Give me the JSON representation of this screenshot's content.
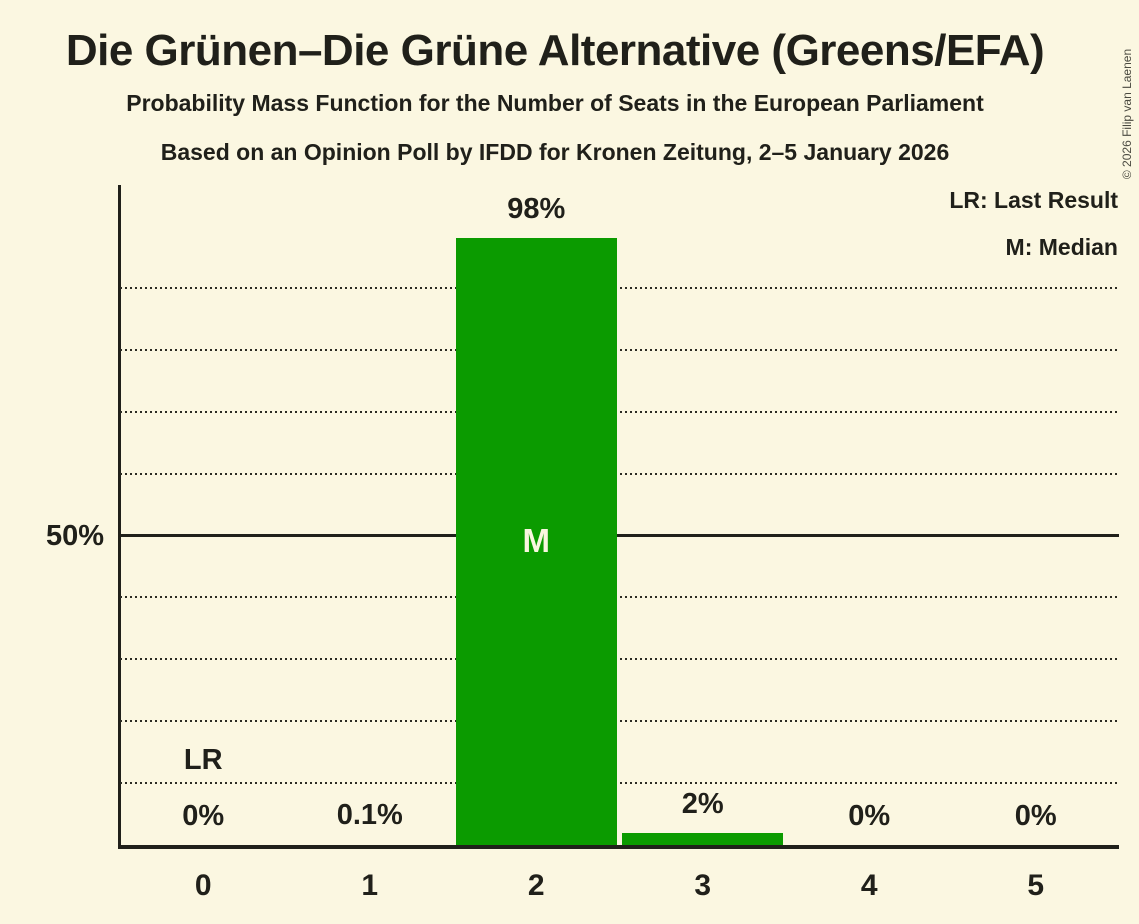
{
  "header": {
    "title": "Die Grünen–Die Grüne Alternative (Greens/EFA)",
    "subtitle": "Probability Mass Function for the Number of Seats in the European Parliament",
    "source_line": "Based on an Opinion Poll by IFDD for Kronen Zeitung, 2–5 January 2026"
  },
  "copyright": "© 2026 Filip van Laenen",
  "legend": {
    "lr": "LR: Last Result",
    "m": "M: Median"
  },
  "chart_data": {
    "type": "bar",
    "title": "Probability Mass Function for the Number of Seats in the European Parliament",
    "categories": [
      "0",
      "1",
      "2",
      "3",
      "4",
      "5"
    ],
    "values": [
      0,
      0.1,
      98,
      2,
      0,
      0
    ],
    "value_labels": [
      "0%",
      "0.1%",
      "98%",
      "2%",
      "0%",
      "0%"
    ],
    "xlabel": "",
    "ylabel": "",
    "ylim": [
      0,
      100
    ],
    "y_axis_tick": "50%",
    "gridlines_pct": [
      10,
      20,
      30,
      40,
      50,
      60,
      70,
      80,
      90
    ],
    "solid_line_pct": 50,
    "legend_position": "top-right",
    "annotations": {
      "last_result_label": "LR",
      "last_result_index": 0,
      "median_label": "M",
      "median_index": 2
    },
    "colors": {
      "bar": "#0B9B00",
      "background": "#FBF7E1",
      "ink": "#20201A",
      "bar_inner_label": "#FAF6E0"
    }
  }
}
